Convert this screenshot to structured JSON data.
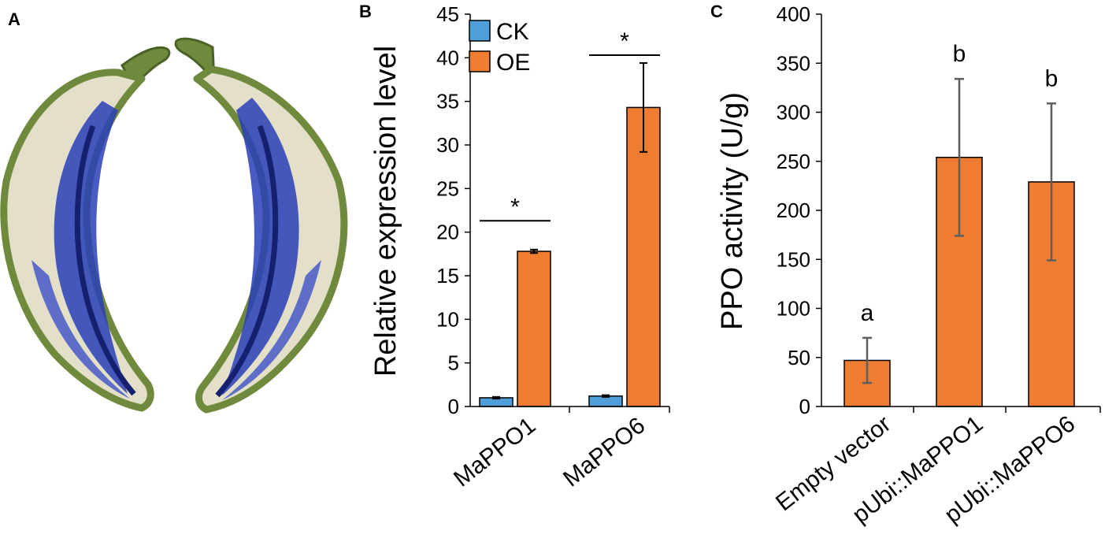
{
  "panels": {
    "A": "A",
    "B": "B",
    "C": "C"
  },
  "colors": {
    "ck": "#4f9ed8",
    "oe": "#ee7d31",
    "axis": "#000000",
    "error_b": "#000000",
    "error_c": "#5e5e5e",
    "peel": "#6f8a3c",
    "flesh": "#e3dfc8",
    "stain": "#2a3fb8",
    "stain_dark": "#15206e"
  },
  "chart_data": [
    {
      "panel": "B",
      "type": "bar",
      "title": "",
      "xlabel": "",
      "ylabel": "Relative expression level",
      "ylim": [
        0,
        45
      ],
      "yticks": [
        "0",
        "5",
        "10",
        "15",
        "20",
        "25",
        "30",
        "35",
        "40",
        "45"
      ],
      "categories": [
        "MaPPO1",
        "MaPPO6"
      ],
      "legend_position": "top-left",
      "series": [
        {
          "name": "CK",
          "values": [
            1.0,
            1.2
          ],
          "errors": [
            0.1,
            0.1
          ]
        },
        {
          "name": "OE",
          "values": [
            17.8,
            34.3
          ],
          "errors": [
            0.2,
            5.1
          ]
        }
      ],
      "annotations": [
        "*",
        "*"
      ]
    },
    {
      "panel": "C",
      "type": "bar",
      "title": "",
      "xlabel": "",
      "ylabel": "PPO activity (U/g)",
      "ylim": [
        0,
        400
      ],
      "yticks": [
        "0",
        "50",
        "100",
        "150",
        "200",
        "250",
        "300",
        "350",
        "400"
      ],
      "categories": [
        "Empty vector",
        "pUbi::MaPPO1",
        "pUbi::MaPPO6"
      ],
      "series": [
        {
          "values": [
            47,
            254,
            229
          ],
          "errors": [
            23,
            80,
            80
          ]
        }
      ],
      "annotations": [
        "a",
        "b",
        "b"
      ]
    }
  ]
}
